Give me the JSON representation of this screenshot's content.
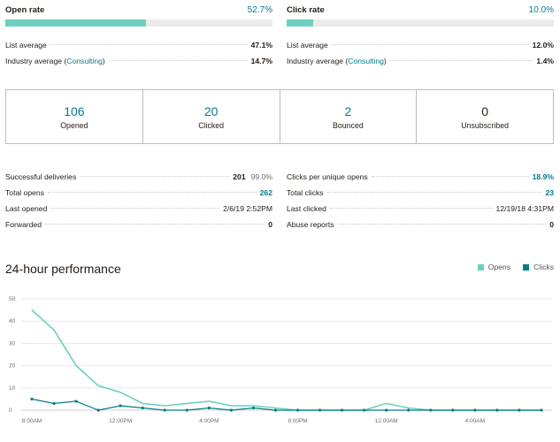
{
  "open_rate": {
    "label": "Open rate",
    "value": "52.7%",
    "fill_percent": 52.7,
    "list_average_label": "List average",
    "list_average_value": "47.1%",
    "industry_prefix": "Industry average (",
    "industry_link": "Consulting",
    "industry_suffix": ")",
    "industry_value": "14.7%"
  },
  "click_rate": {
    "label": "Click rate",
    "value": "10.0%",
    "fill_percent": 10.0,
    "list_average_label": "List average",
    "list_average_value": "12.0%",
    "industry_prefix": "Industry average (",
    "industry_link": "Consulting",
    "industry_suffix": ")",
    "industry_value": "1.4%"
  },
  "stats": [
    {
      "value": "106",
      "label": "Opened"
    },
    {
      "value": "20",
      "label": "Clicked"
    },
    {
      "value": "2",
      "label": "Bounced"
    },
    {
      "value": "0",
      "label": "Unsubscribed"
    }
  ],
  "details_left": [
    {
      "label": "Successful deliveries",
      "value": "201",
      "sub": "99.0%"
    },
    {
      "label": "Total opens",
      "value": "262"
    },
    {
      "label": "Last opened",
      "value": "2/6/19 2:52PM"
    },
    {
      "label": "Forwarded",
      "value": "0"
    }
  ],
  "details_right": [
    {
      "label": "Clicks per unique opens",
      "value": "18.9%"
    },
    {
      "label": "Total clicks",
      "value": "23"
    },
    {
      "label": "Last clicked",
      "value": "12/19/18 4:31PM"
    },
    {
      "label": "Abuse reports",
      "value": "0"
    }
  ],
  "performance": {
    "title": "24-hour performance",
    "legend": [
      {
        "name": "Opens",
        "color": "#6dd0bf"
      },
      {
        "name": "Clicks",
        "color": "#007c89"
      }
    ]
  },
  "chart_data": {
    "type": "line",
    "title": "24-hour performance",
    "ylim": [
      0,
      50
    ],
    "y_ticks": [
      0,
      10,
      20,
      30,
      40,
      50
    ],
    "x_tick_labels": [
      {
        "index": 0,
        "label": "8:00AM"
      },
      {
        "index": 4,
        "label": "12:00PM"
      },
      {
        "index": 8,
        "label": "4:00PM"
      },
      {
        "index": 12,
        "label": "8:00PM"
      },
      {
        "index": 16,
        "label": "12:00AM"
      },
      {
        "index": 20,
        "label": "4:00AM"
      }
    ],
    "num_points": 24,
    "grid": true,
    "legend_position": "top-right",
    "series": [
      {
        "name": "Opens",
        "color": "#6dd0bf",
        "values": [
          45,
          36,
          20,
          11,
          8,
          3,
          2,
          3,
          4,
          2,
          2,
          1,
          0,
          0,
          0,
          0,
          3,
          1,
          0,
          0,
          0,
          0,
          0,
          0
        ]
      },
      {
        "name": "Clicks",
        "color": "#007c89",
        "values": [
          5,
          3,
          4,
          0,
          2,
          1,
          0,
          0,
          1,
          0,
          1,
          0,
          0,
          0,
          0,
          0,
          0,
          0,
          0,
          0,
          0,
          0,
          0,
          0
        ]
      }
    ]
  }
}
